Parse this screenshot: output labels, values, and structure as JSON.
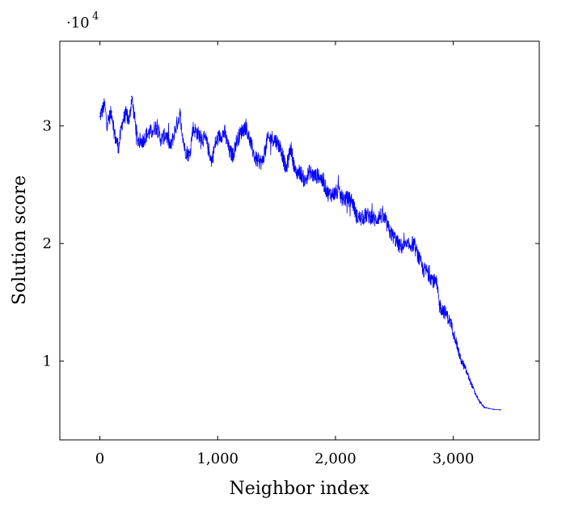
{
  "chart_data": {
    "type": "line",
    "xlabel": "Neighbor index",
    "ylabel": "Solution score",
    "y_multiplier_label": "·10",
    "y_multiplier_exponent": "4",
    "xlim": [
      -340,
      3730
    ],
    "ylim": [
      3300,
      37200
    ],
    "x_ticks": [
      {
        "value": 0,
        "label": "0"
      },
      {
        "value": 1000,
        "label": "1,000"
      },
      {
        "value": 2000,
        "label": "2,000"
      },
      {
        "value": 3000,
        "label": "3,000"
      }
    ],
    "y_ticks": [
      {
        "value": 10000,
        "label": "1"
      },
      {
        "value": 20000,
        "label": "2"
      },
      {
        "value": 30000,
        "label": "3"
      }
    ],
    "line_color": "#0000ff",
    "series": [
      {
        "x": [
          0,
          40,
          60,
          100,
          130,
          160,
          190,
          220,
          250,
          270,
          290,
          320,
          360,
          400,
          440,
          480,
          520,
          560,
          600,
          640,
          680,
          720,
          760,
          790,
          820,
          860,
          900,
          950,
          980,
          1020,
          1060,
          1100,
          1130,
          1160,
          1200,
          1240,
          1280,
          1320,
          1350,
          1380,
          1420,
          1460,
          1500,
          1540,
          1580,
          1620,
          1660,
          1700,
          1740,
          1780,
          1820,
          1860,
          1900,
          1940,
          1980,
          2020,
          2060,
          2100,
          2140,
          2180,
          2220,
          2260,
          2300,
          2340,
          2380,
          2420,
          2460,
          2500,
          2540,
          2580,
          2620,
          2660,
          2700,
          2740,
          2780,
          2820,
          2860,
          2880,
          2900,
          2940,
          2980,
          3020,
          3060,
          3100,
          3140,
          3180,
          3220,
          3260,
          3300,
          3340,
          3400
        ],
        "y": [
          30800,
          31800,
          30200,
          31200,
          29000,
          28200,
          30300,
          31000,
          30400,
          32500,
          31000,
          28800,
          28700,
          29300,
          29500,
          30000,
          28800,
          29300,
          28200,
          29700,
          31000,
          28000,
          27500,
          29800,
          29500,
          29000,
          28800,
          27000,
          28500,
          29200,
          29400,
          27800,
          27500,
          28700,
          29500,
          30000,
          28500,
          27200,
          27000,
          26900,
          28800,
          29000,
          28700,
          28000,
          26200,
          28200,
          26000,
          26100,
          25300,
          26100,
          25700,
          25800,
          25100,
          24200,
          24200,
          24400,
          23800,
          23800,
          23700,
          22300,
          22100,
          22400,
          22300,
          22000,
          22400,
          22000,
          21000,
          20500,
          19800,
          19700,
          19800,
          20000,
          19000,
          17800,
          17600,
          17000,
          16500,
          14800,
          14500,
          14000,
          13200,
          11800,
          10200,
          9400,
          8400,
          7400,
          6600,
          6100,
          5980,
          5900,
          5850
        ]
      }
    ]
  }
}
